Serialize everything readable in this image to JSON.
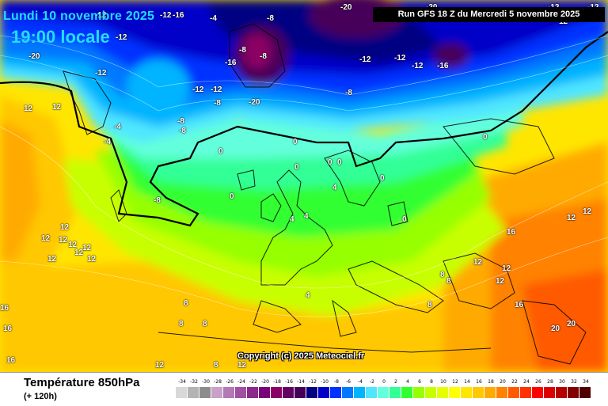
{
  "header": {
    "date_label": "Lundi 10 novembre 2025",
    "hour_label": "19:00 locale",
    "run_label": "Run GFS 18 Z du Mercredi 5 novembre 2025"
  },
  "copyright": "Copyright (c) 2025 Meteociel.fr",
  "footer": {
    "parameter": "Température 850hPa",
    "lead_time": "(+ 120h)"
  },
  "legend": [
    {
      "label": "-34",
      "color": "#d8d8d8"
    },
    {
      "label": "-32",
      "color": "#b4b4b4"
    },
    {
      "label": "-30",
      "color": "#8c8c8c"
    },
    {
      "label": "-28",
      "color": "#c8a0c8"
    },
    {
      "label": "-26",
      "color": "#b478b4"
    },
    {
      "label": "-24",
      "color": "#a050a0"
    },
    {
      "label": "-22",
      "color": "#8c288c"
    },
    {
      "label": "-20",
      "color": "#780078"
    },
    {
      "label": "-18",
      "color": "#8c0064"
    },
    {
      "label": "-16",
      "color": "#640064"
    },
    {
      "label": "-14",
      "color": "#46005a"
    },
    {
      "label": "-12",
      "color": "#000082"
    },
    {
      "label": "-10",
      "color": "#0000c8"
    },
    {
      "label": "-8",
      "color": "#0032ff"
    },
    {
      "label": "-6",
      "color": "#0078ff"
    },
    {
      "label": "-4",
      "color": "#00b4ff"
    },
    {
      "label": "-2",
      "color": "#50e6ff"
    },
    {
      "label": "0",
      "color": "#64ffdc"
    },
    {
      "label": "2",
      "color": "#32ff96"
    },
    {
      "label": "4",
      "color": "#32ff32"
    },
    {
      "label": "6",
      "color": "#96ff00"
    },
    {
      "label": "8",
      "color": "#c8ff00"
    },
    {
      "label": "10",
      "color": "#e6ff00"
    },
    {
      "label": "12",
      "color": "#ffff00"
    },
    {
      "label": "14",
      "color": "#ffe600"
    },
    {
      "label": "16",
      "color": "#ffc800"
    },
    {
      "label": "18",
      "color": "#ffaa00"
    },
    {
      "label": "20",
      "color": "#ff8200"
    },
    {
      "label": "22",
      "color": "#ff5a00"
    },
    {
      "label": "24",
      "color": "#ff3200"
    },
    {
      "label": "26",
      "color": "#ff0000"
    },
    {
      "label": "28",
      "color": "#dc0000"
    },
    {
      "label": "30",
      "color": "#b40000"
    },
    {
      "label": "32",
      "color": "#820000"
    },
    {
      "label": "34",
      "color": "#500000"
    }
  ],
  "isotherm_labels": [
    "-12",
    "-12",
    "-4",
    "-8",
    "-20",
    "-20",
    "-12",
    "-12",
    "-12",
    "-16",
    "-20",
    "-12",
    "-12",
    "-12",
    "-8",
    "-8",
    "-20",
    "-16",
    "-12",
    "-12",
    "-12",
    "-16",
    "-8",
    "-4",
    "-8",
    "-8",
    "-4",
    "-8",
    "-8",
    "0",
    "0",
    "0",
    "0",
    "0",
    "0",
    "0",
    "4",
    "4",
    "4",
    "0",
    "0",
    "12",
    "12",
    "12",
    "12",
    "12",
    "12",
    "12",
    "16",
    "16",
    "16",
    "12",
    "12",
    "12",
    "12",
    "12",
    "12",
    "8",
    "8",
    "8",
    "8",
    "4",
    "8",
    "8",
    "8",
    "16",
    "20",
    "20",
    "12",
    "12",
    "12",
    "16",
    "12",
    "12"
  ]
}
